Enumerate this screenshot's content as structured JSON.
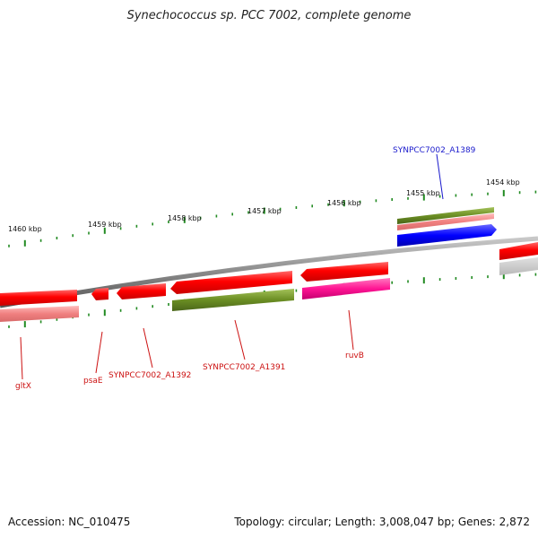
{
  "title": "Synechococcus sp. PCC 7002, complete genome",
  "footer": {
    "accession": "Accession: NC_010475",
    "summary": "Topology: circular; Length: 3,008,047 bp; Genes: 2,872"
  },
  "ticks": [
    {
      "label": "1460 kbp"
    },
    {
      "label": "1459 kbp"
    },
    {
      "label": "1458 kbp"
    },
    {
      "label": "1457 kbp"
    },
    {
      "label": "1456 kbp"
    },
    {
      "label": "1455 kbp"
    },
    {
      "label": "1454 kbp"
    }
  ],
  "gene_labels": [
    {
      "text": "SYNPCC7002_A1389",
      "color": "#1a1acc"
    },
    {
      "text": "gltX",
      "color": "#cc1111"
    },
    {
      "text": "psaE",
      "color": "#cc1111"
    },
    {
      "text": "SYNPCC7002_A1392",
      "color": "#cc1111"
    },
    {
      "text": "SYNPCC7002_A1391",
      "color": "#cc1111"
    },
    {
      "text": "ruvB",
      "color": "#cc1111"
    }
  ],
  "colors": {
    "cds": "#ff0000",
    "cds_light": "#f08080",
    "gene_olive": "#6b8e23",
    "blue": "#0000ff",
    "magenta": "#ff1493",
    "backbone": "#808080",
    "ticks": "#228b22"
  }
}
